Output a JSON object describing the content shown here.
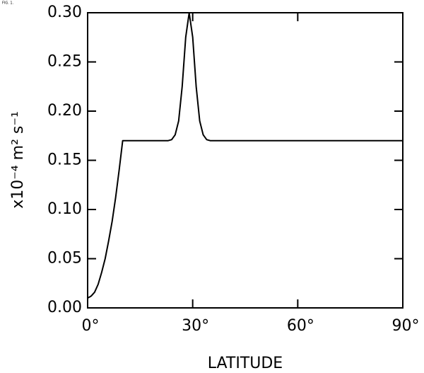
{
  "figure_label": "FIG. 1.",
  "chart_data": {
    "type": "line",
    "xlabel": "LATITUDE",
    "ylabel": "x10⁻⁴ m² s⁻¹",
    "x": [
      0,
      1,
      2,
      3,
      4,
      5,
      6,
      7,
      8,
      9,
      10,
      15,
      20,
      23,
      24,
      25,
      26,
      27,
      28,
      29,
      30,
      31,
      32,
      33,
      34,
      35,
      40,
      50,
      60,
      70,
      80,
      90
    ],
    "values": [
      0.01,
      0.012,
      0.016,
      0.024,
      0.036,
      0.05,
      0.068,
      0.088,
      0.112,
      0.14,
      0.17,
      0.17,
      0.17,
      0.17,
      0.171,
      0.176,
      0.19,
      0.225,
      0.275,
      0.3,
      0.275,
      0.225,
      0.19,
      0.176,
      0.171,
      0.17,
      0.17,
      0.17,
      0.17,
      0.17,
      0.17,
      0.17
    ],
    "color": "#000000",
    "xlim": [
      0,
      90
    ],
    "ylim": [
      0,
      0.3
    ],
    "xticks": [
      {
        "value": 0,
        "label": "0°"
      },
      {
        "value": 30,
        "label": "30°"
      },
      {
        "value": 60,
        "label": "60°"
      },
      {
        "value": 90,
        "label": "90°"
      }
    ],
    "yticks": [
      {
        "value": 0,
        "label": "0.00"
      },
      {
        "value": 0.05,
        "label": "0.05"
      },
      {
        "value": 0.1,
        "label": "0.10"
      },
      {
        "value": 0.15,
        "label": "0.15"
      },
      {
        "value": 0.2,
        "label": "0.20"
      },
      {
        "value": 0.25,
        "label": "0.25"
      },
      {
        "value": 0.3,
        "label": "0.30"
      }
    ]
  }
}
